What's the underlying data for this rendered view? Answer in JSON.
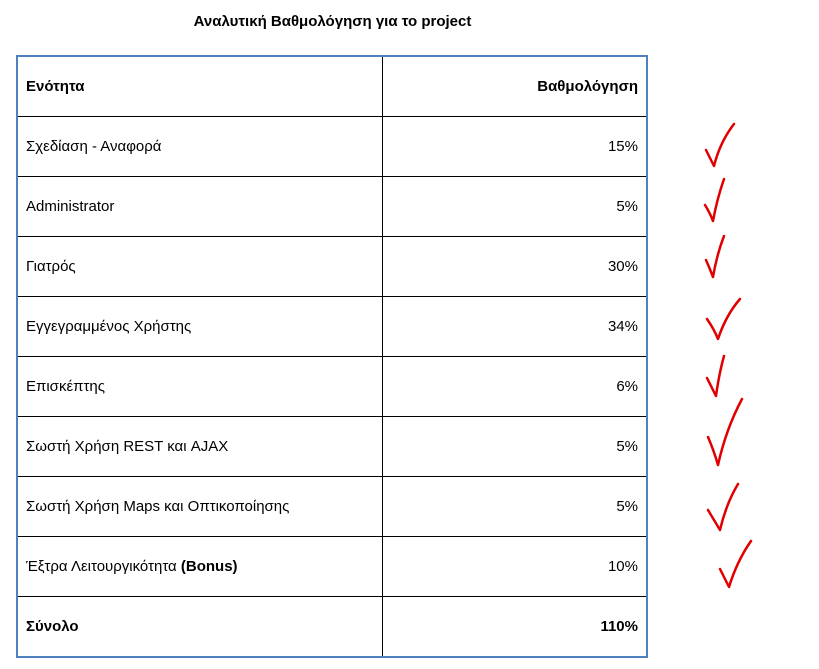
{
  "title": "Αναλυτική Βαθμολόγηση για το project",
  "table": {
    "headers": [
      "Ενότητα",
      "Βαθμολόγηση"
    ],
    "rows": [
      {
        "section": "Σχεδίαση - Αναφορά",
        "grade": "15%"
      },
      {
        "section": "Administrator",
        "grade": "5%"
      },
      {
        "section": "Γιατρός",
        "grade": "30%"
      },
      {
        "section": "Εγγεγραμμένος Χρήστης",
        "grade": "34%"
      },
      {
        "section": "Επισκέπτης",
        "grade": "6%"
      },
      {
        "section": "Σωστή Χρήση REST και AJAX",
        "grade": "5%"
      },
      {
        "section": "Σωστή Χρήση Maps και Οπτικοποίησης",
        "grade": "5%"
      },
      {
        "section": "Έξτρα Λειτουργικότητα ",
        "section_bold": "(Bonus)",
        "grade": "10%"
      }
    ],
    "total": {
      "label": "Σύνολο",
      "grade": "110%"
    }
  },
  "colors": {
    "table_border": "#4f81bd",
    "checkmark": "#e00000"
  },
  "icons": [
    "red-checkmark-icon"
  ]
}
